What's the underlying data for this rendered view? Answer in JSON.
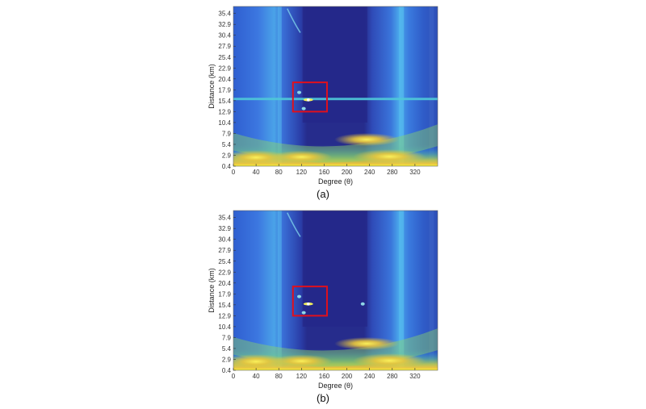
{
  "figure": {
    "panels": [
      {
        "id": "a",
        "caption": "(a)"
      },
      {
        "id": "b",
        "caption": "(b)"
      }
    ]
  },
  "chart_data": [
    {
      "type": "heatmap",
      "panel": "(a)",
      "xlabel": "Degree (θ)",
      "ylabel": "Distance (km)",
      "x_ticks": [
        0,
        40,
        80,
        120,
        160,
        200,
        240,
        280,
        320
      ],
      "y_ticks": [
        0.4,
        2.9,
        5.4,
        7.9,
        10.4,
        12.9,
        15.4,
        17.9,
        20.4,
        22.9,
        25.4,
        27.9,
        30.4,
        32.9,
        35.4
      ],
      "xlim": [
        0,
        360
      ],
      "ylim": [
        0.4,
        37.0
      ],
      "colormap": "parula",
      "highlight_box": {
        "x": [
          105,
          165
        ],
        "y": [
          12.9,
          19.6
        ],
        "color": "#e0101c"
      },
      "horizontal_clutter_line_km": 15.8,
      "targets": [
        {
          "x": 132,
          "y": 15.6
        },
        {
          "x": 124,
          "y": 13.6
        },
        {
          "x": 116,
          "y": 17.3
        }
      ]
    },
    {
      "type": "heatmap",
      "panel": "(b)",
      "xlabel": "Degree (θ)",
      "ylabel": "Distance (km)",
      "x_ticks": [
        0,
        40,
        80,
        120,
        160,
        200,
        240,
        280,
        320
      ],
      "y_ticks": [
        0.4,
        2.9,
        5.4,
        7.9,
        10.4,
        12.9,
        15.4,
        17.9,
        20.4,
        22.9,
        25.4,
        27.9,
        30.4,
        32.9,
        35.4
      ],
      "xlim": [
        0,
        360
      ],
      "ylim": [
        0.4,
        37.0
      ],
      "colormap": "parula",
      "highlight_box": {
        "x": [
          105,
          165
        ],
        "y": [
          12.9,
          19.6
        ],
        "color": "#e0101c"
      },
      "targets": [
        {
          "x": 132,
          "y": 15.6
        },
        {
          "x": 124,
          "y": 13.6
        },
        {
          "x": 116,
          "y": 17.3
        },
        {
          "x": 228,
          "y": 15.6
        }
      ]
    }
  ]
}
